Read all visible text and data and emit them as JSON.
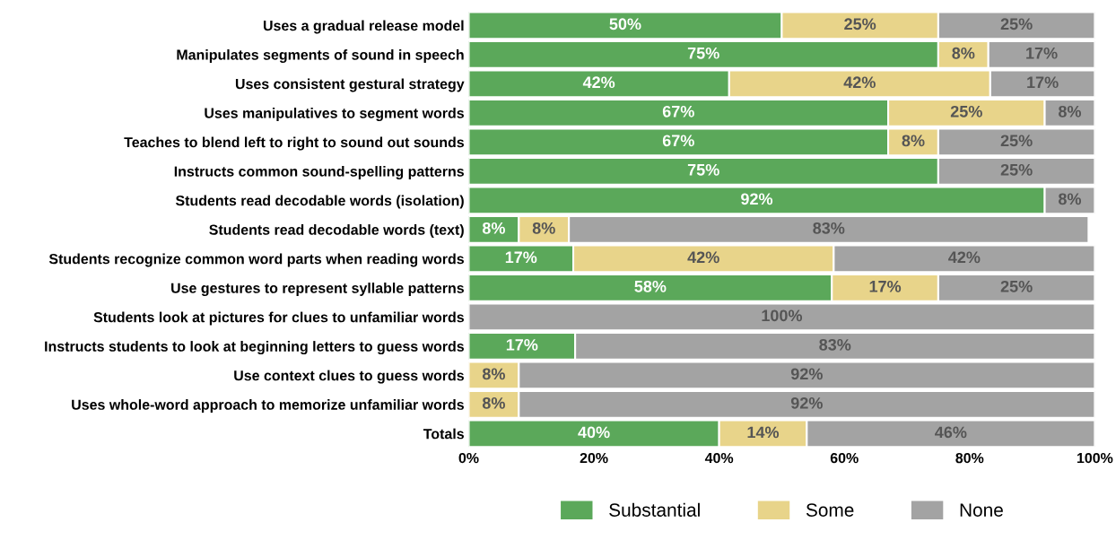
{
  "chart_data": {
    "type": "bar",
    "orientation": "horizontal",
    "stacked": true,
    "categories": [
      "Uses a gradual release model",
      "Manipulates segments of sound in speech",
      "Uses consistent gestural strategy",
      "Uses manipulatives to segment words",
      "Teaches to blend left to right to sound out sounds",
      "Instructs common sound-spelling patterns",
      "Students read decodable words (isolation)",
      "Students read decodable words (text)",
      "Students recognize common word parts when reading words",
      "Use gestures to represent syllable patterns",
      "Students look at pictures for clues to unfamiliar words",
      "Instructs students to look at beginning letters to guess words",
      "Use context clues to guess words",
      "Uses whole-word approach to memorize unfamiliar words",
      "Totals"
    ],
    "series": [
      {
        "name": "Substantial",
        "color": "#5ba85a",
        "values": [
          50,
          75,
          41.6,
          67,
          67,
          75,
          92,
          8,
          16.7,
          58,
          null,
          17,
          null,
          null,
          40
        ],
        "value_labels": [
          "50%",
          "75%",
          "42%",
          "67%",
          "67%",
          "75%",
          "92%",
          "8%",
          "17%",
          "58%",
          null,
          "17%",
          null,
          null,
          "40%"
        ]
      },
      {
        "name": "Some",
        "color": "#e8d48a",
        "values": [
          25,
          8,
          41.7,
          25,
          8,
          null,
          null,
          8,
          41.6,
          17,
          null,
          null,
          8,
          8,
          14
        ],
        "value_labels": [
          "25%",
          "8%",
          "42%",
          "25%",
          "8%",
          null,
          null,
          "8%",
          "42%",
          "17%",
          null,
          null,
          "8%",
          "8%",
          "14%"
        ]
      },
      {
        "name": "None",
        "color": "#a3a3a3",
        "values": [
          25,
          17,
          16.7,
          8,
          25,
          25,
          8,
          83,
          41.7,
          25,
          100,
          83,
          92,
          92,
          46
        ],
        "value_labels": [
          "25%",
          "17%",
          "17%",
          "8%",
          "25%",
          "25%",
          "8%",
          "83%",
          "42%",
          "25%",
          "100%",
          "83%",
          "92%",
          "92%",
          "46%"
        ]
      }
    ],
    "xlim": [
      0,
      100
    ],
    "xticks": [
      {
        "value": 0,
        "label": "0%"
      },
      {
        "value": 20,
        "label": "20%"
      },
      {
        "value": 40,
        "label": "40%"
      },
      {
        "value": 60,
        "label": "60%"
      },
      {
        "value": 80,
        "label": "80%"
      },
      {
        "value": 100,
        "label": "100%"
      }
    ],
    "grid": false,
    "legend": "bottom"
  }
}
